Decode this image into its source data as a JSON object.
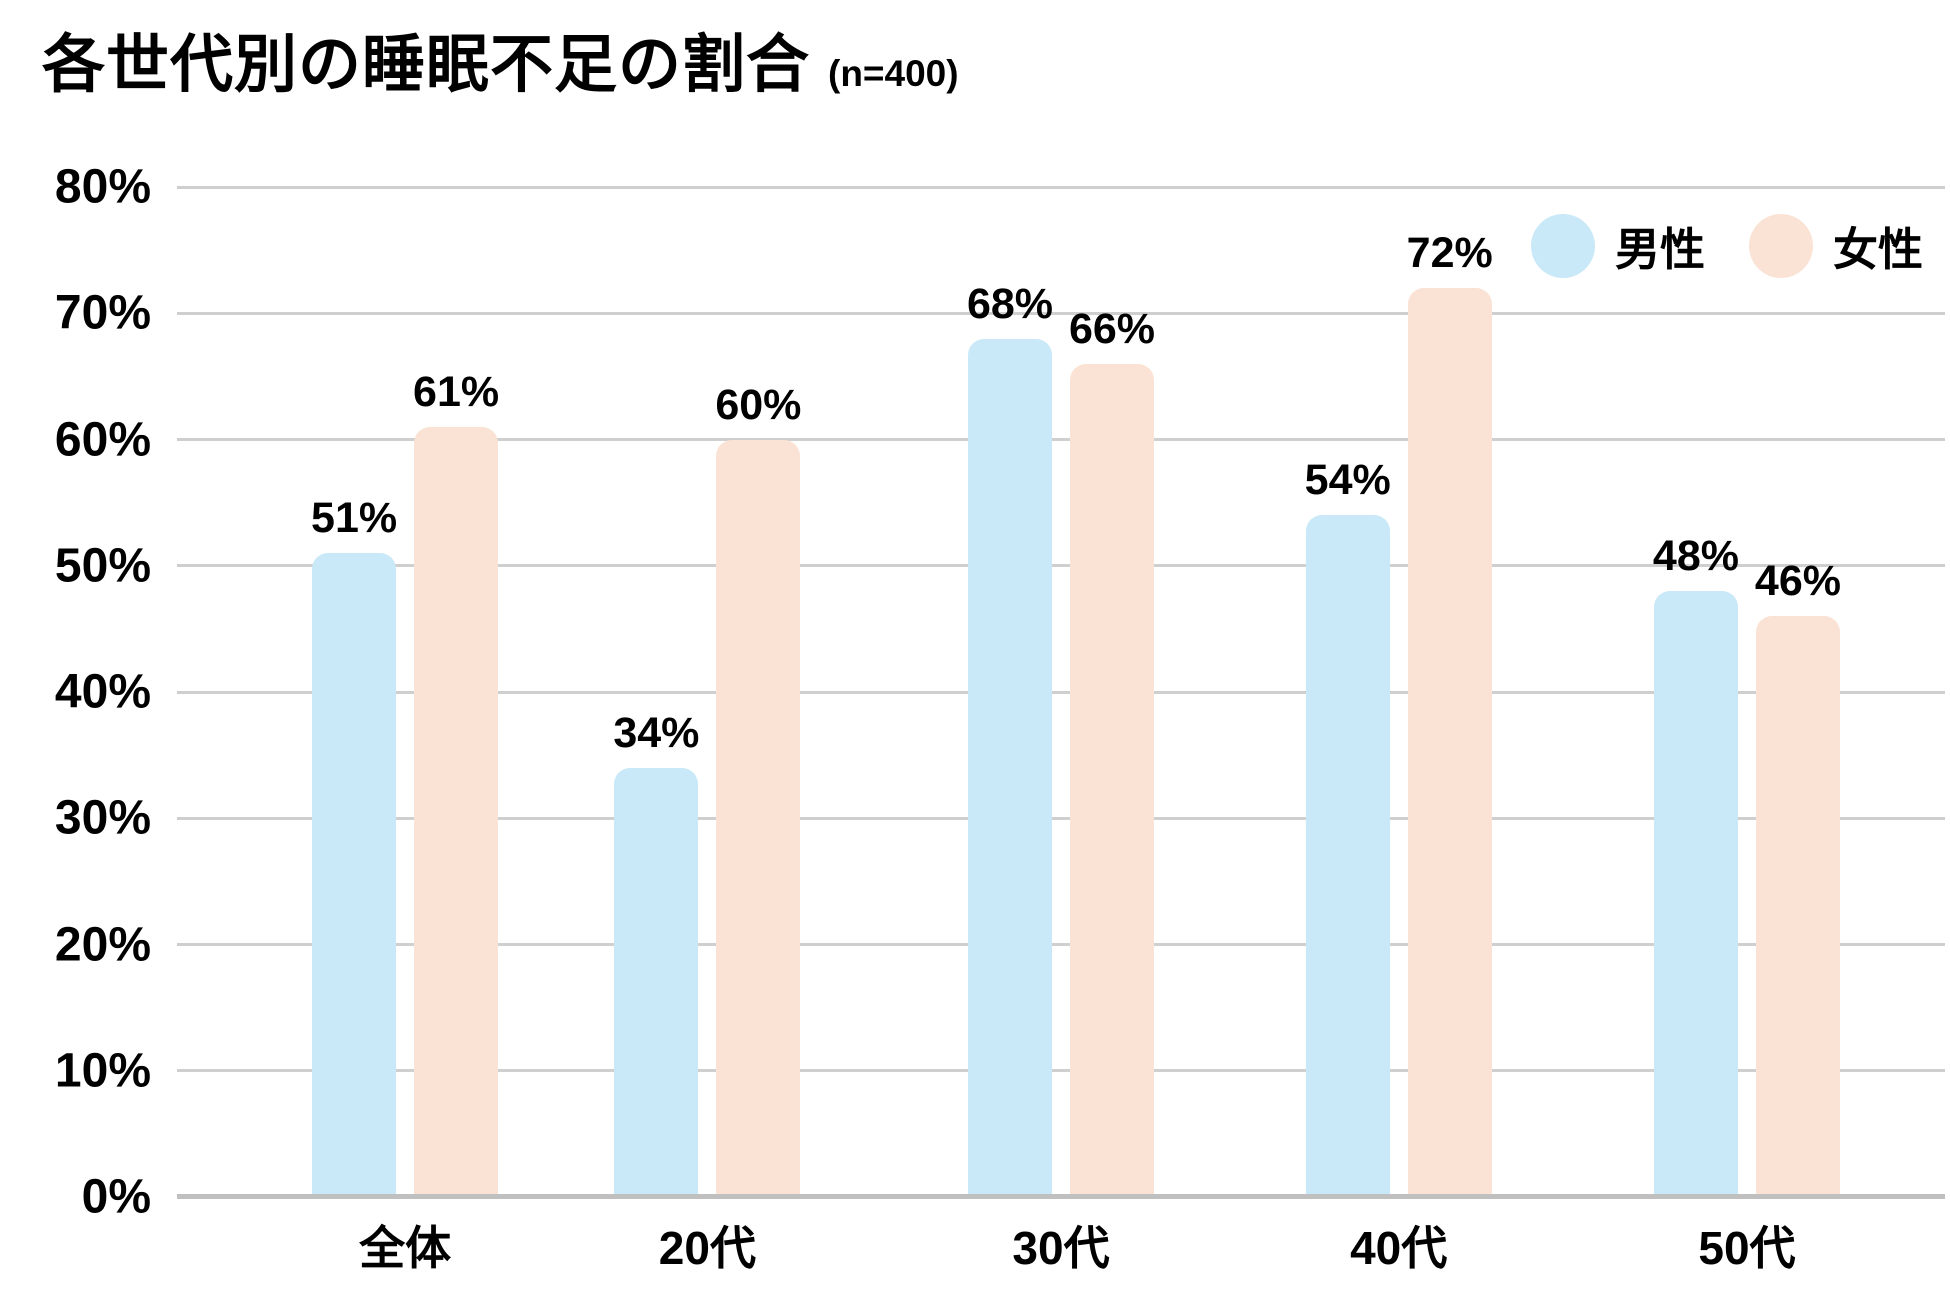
{
  "colors": {
    "male_bar": "#C9E9F8",
    "female_bar": "#FAE2D4",
    "gridline": "#CFCFCF",
    "axis_line": "#C0C0C0",
    "text": "#000000",
    "background": "#FFFFFF"
  },
  "chart_data": {
    "type": "bar",
    "title": "各世代別の睡眠不足の割合",
    "subtitle": "(n=400)",
    "categories": [
      "全体",
      "20代",
      "30代",
      "40代",
      "50代"
    ],
    "series": [
      {
        "key": "male",
        "name": "男性",
        "color": "#C9E9F8",
        "values": [
          51,
          34,
          68,
          54,
          48
        ]
      },
      {
        "key": "female",
        "name": "女性",
        "color": "#FAE2D4",
        "values": [
          61,
          60,
          66,
          72,
          46
        ]
      }
    ],
    "value_suffix": "%",
    "data_labels": [
      "51%",
      "34%",
      "68%",
      "54%",
      "48%",
      "61%",
      "60%",
      "66%",
      "72%",
      "46%"
    ],
    "ylim": [
      0,
      80
    ],
    "y_ticks": [
      "0%",
      "10%",
      "20%",
      "30%",
      "40%",
      "50%",
      "60%",
      "70%",
      "80%"
    ],
    "grid": true,
    "legend_position": "top-right",
    "group_centers": [
      0.129,
      0.3,
      0.5,
      0.691,
      0.888
    ]
  }
}
